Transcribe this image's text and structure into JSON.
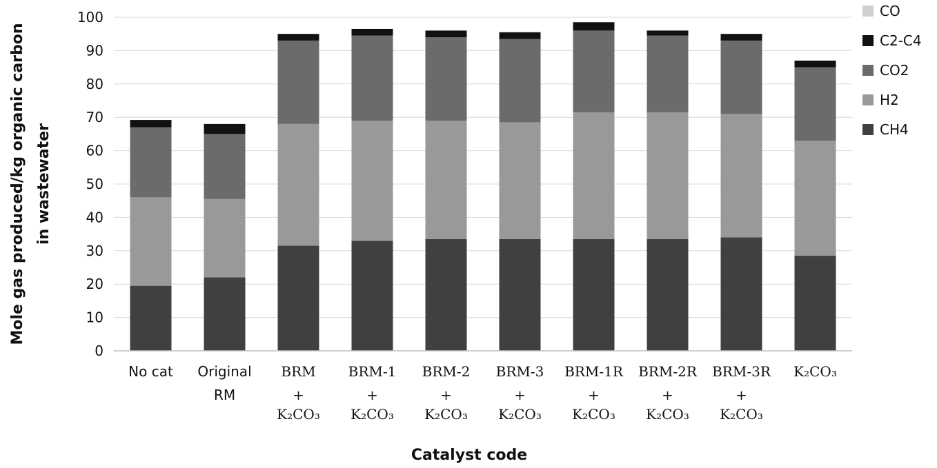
{
  "chart_data": {
    "type": "bar",
    "stacked": true,
    "ylabel_line1": "Mole gas produced/kg organic carbon",
    "ylabel_line2": "in wastewater",
    "xlabel": "Catalyst code",
    "ylim": [
      0,
      100
    ],
    "ytick_step": 10,
    "yticks": [
      "0",
      "10",
      "20",
      "30",
      "40",
      "50",
      "60",
      "70",
      "80",
      "90",
      "100"
    ],
    "grid": true,
    "legend_position": "right",
    "categories": [
      {
        "line1": "No cat",
        "line2": "",
        "line3": ""
      },
      {
        "line1": "Original",
        "line2": "RM",
        "line3": ""
      },
      {
        "line1": "BRM",
        "line2": "+",
        "line3": "K₂CO₃"
      },
      {
        "line1": "BRM-1",
        "line2": "+",
        "line3": "K₂CO₃"
      },
      {
        "line1": "BRM-2",
        "line2": "+",
        "line3": "K₂CO₃"
      },
      {
        "line1": "BRM-3",
        "line2": "+",
        "line3": "K₂CO₃"
      },
      {
        "line1": "BRM-1R",
        "line2": "+",
        "line3": "K₂CO₃"
      },
      {
        "line1": "BRM-2R",
        "line2": "+",
        "line3": "K₂CO₃"
      },
      {
        "line1": "BRM-3R",
        "line2": "+",
        "line3": "K₂CO₃"
      },
      {
        "line1": "K₂CO₃",
        "line2": "",
        "line3": ""
      }
    ],
    "series": [
      {
        "name": "CH4",
        "color": "#404040",
        "values": [
          19.5,
          22,
          31.5,
          33,
          33.5,
          33.5,
          33.5,
          33.5,
          34,
          28.5
        ]
      },
      {
        "name": "H2",
        "color": "#999999",
        "values": [
          26.5,
          23.5,
          36.5,
          36,
          35.5,
          35,
          38,
          38,
          37,
          34.5
        ]
      },
      {
        "name": "CO2",
        "color": "#6b6b6b",
        "values": [
          21,
          19.5,
          25,
          25.5,
          25,
          25,
          24.5,
          23,
          22,
          22
        ]
      },
      {
        "name": "C2-C4",
        "color": "#111111",
        "values": [
          2.2,
          3.0,
          2.0,
          2.0,
          2.0,
          2.0,
          2.5,
          1.5,
          2.0,
          2.0
        ]
      },
      {
        "name": "CO",
        "color": "#cfcfcf",
        "values": [
          0,
          0,
          0,
          0,
          0,
          0,
          0,
          0,
          0,
          0
        ]
      }
    ],
    "legend_order": [
      "CO",
      "C2-C4",
      "CO2",
      "H2",
      "CH4"
    ]
  }
}
